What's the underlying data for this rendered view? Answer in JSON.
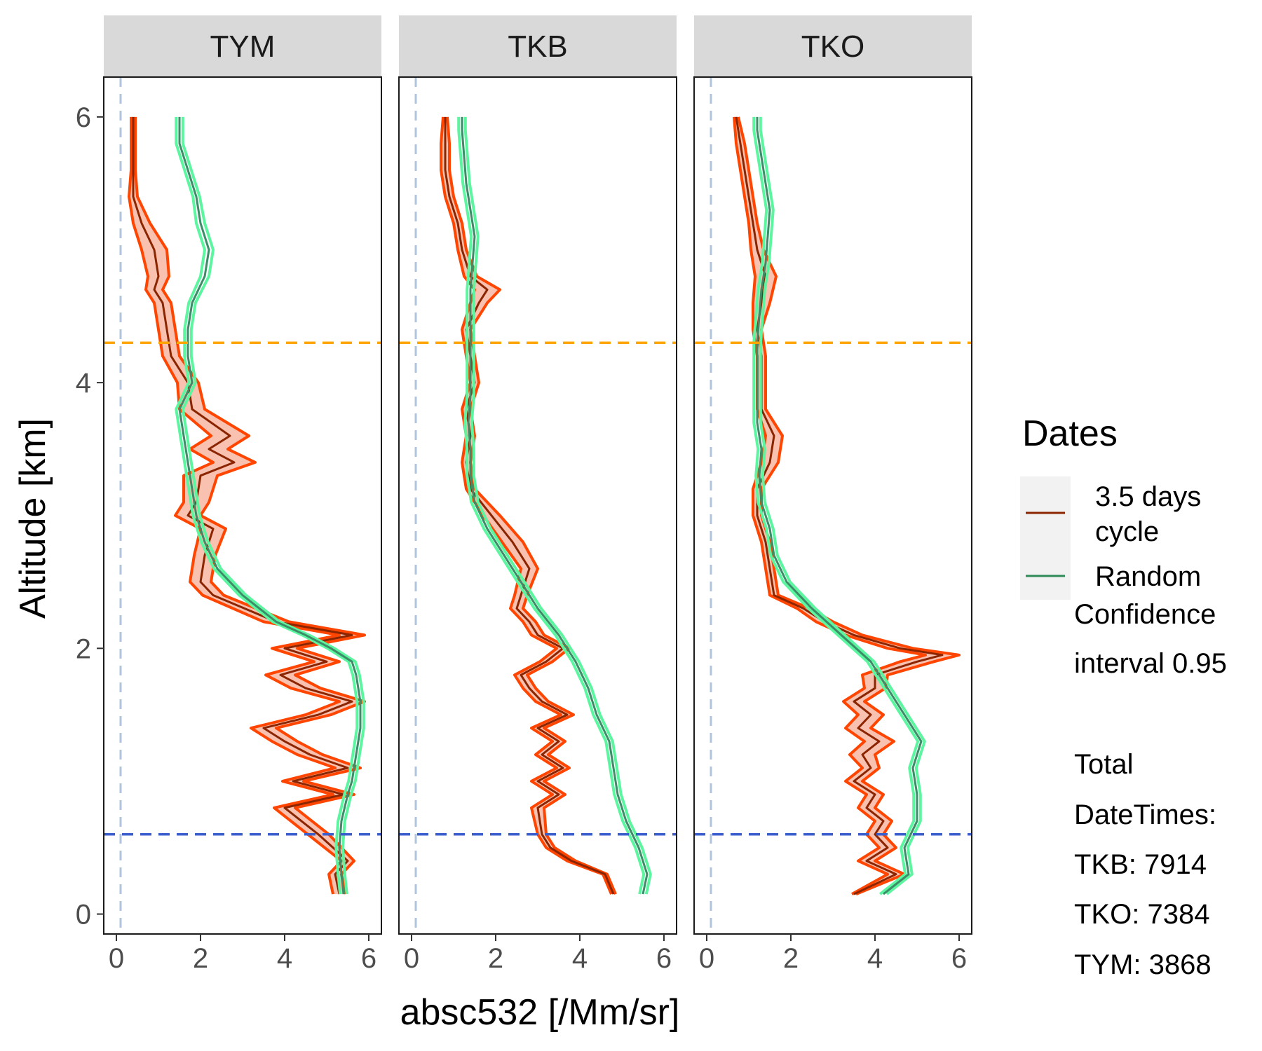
{
  "chart_data": {
    "type": "line",
    "xlabel": "absc532 [/Mm/sr]",
    "ylabel": "Altitude [km]",
    "xlim": [
      -0.3,
      6.3
    ],
    "ylim": [
      -0.15,
      6.3
    ],
    "x_ticks": [
      0,
      2,
      4,
      6
    ],
    "y_ticks": [
      0,
      2,
      4,
      6
    ],
    "grid": false,
    "legend_position": "right",
    "legend": {
      "title": "Dates",
      "items": [
        {
          "label_lines": [
            "3.5 days",
            "cycle"
          ],
          "color": "#8B2500"
        },
        {
          "label_lines": [
            "Random"
          ],
          "color": "#2E8B57"
        }
      ]
    },
    "caption_lines": [
      "Confidence",
      "interval 0.95",
      "",
      "Total",
      "DateTimes:",
      "TKB: 7914",
      "TKO: 7384",
      "TYM: 3868"
    ],
    "colors": {
      "cycle_line": "#8B2500",
      "cycle_band_edge": "#FF4500",
      "cycle_band_fill": "#F8B6A2",
      "random_line": "#3C8C68",
      "random_band_edge": "#5CF5A0",
      "hline_upper": "#FFA500",
      "hline_lower": "#3A5FCD",
      "vline": "#B0C4DE",
      "strip_bg": "#D9D9D9"
    },
    "reference_lines": {
      "horizontal_upper": 4.3,
      "horizontal_lower": 0.6,
      "vertical": 0.1
    },
    "panels": [
      {
        "name": "TYM",
        "series": [
          {
            "name": "3.5 days cycle",
            "altitude": [
              0.15,
              0.3,
              0.4,
              0.6,
              0.8,
              0.9,
              1.0,
              1.1,
              1.2,
              1.3,
              1.4,
              1.5,
              1.6,
              1.7,
              1.8,
              1.9,
              2.0,
              2.1,
              2.2,
              2.4,
              2.5,
              2.7,
              2.9,
              3.0,
              3.1,
              3.3,
              3.4,
              3.5,
              3.6,
              3.8,
              4.0,
              4.2,
              4.4,
              4.6,
              4.7,
              4.8,
              5.0,
              5.2,
              5.4,
              5.6,
              5.8,
              6.0
            ],
            "value": [
              5.3,
              5.2,
              5.5,
              4.8,
              4.0,
              5.4,
              4.2,
              5.5,
              4.6,
              4.0,
              3.5,
              4.8,
              5.6,
              4.5,
              3.9,
              5.0,
              4.0,
              5.6,
              3.8,
              2.3,
              2.0,
              2.1,
              2.3,
              1.7,
              1.9,
              2.0,
              2.8,
              2.2,
              2.7,
              1.8,
              1.7,
              1.3,
              1.2,
              1.1,
              0.9,
              1.0,
              0.9,
              0.6,
              0.4,
              0.4,
              0.4,
              0.4
            ],
            "half_width": [
              0.15,
              0.15,
              0.15,
              0.25,
              0.25,
              0.25,
              0.25,
              0.3,
              0.3,
              0.3,
              0.3,
              0.3,
              0.3,
              0.35,
              0.35,
              0.3,
              0.3,
              0.3,
              0.3,
              0.25,
              0.25,
              0.25,
              0.3,
              0.3,
              0.3,
              0.4,
              0.5,
              0.45,
              0.45,
              0.3,
              0.25,
              0.2,
              0.2,
              0.2,
              0.2,
              0.25,
              0.3,
              0.2,
              0.1,
              0.05,
              0.05,
              0.05
            ]
          },
          {
            "name": "Random",
            "altitude": [
              0.15,
              0.3,
              0.5,
              0.7,
              0.9,
              1.0,
              1.2,
              1.4,
              1.6,
              1.8,
              1.9,
              2.0,
              2.1,
              2.2,
              2.4,
              2.6,
              2.8,
              3.0,
              3.2,
              3.4,
              3.6,
              3.8,
              4.0,
              4.2,
              4.4,
              4.6,
              4.8,
              5.0,
              5.2,
              5.4,
              5.6,
              5.8,
              6.0
            ],
            "value": [
              5.4,
              5.35,
              5.3,
              5.35,
              5.5,
              5.6,
              5.7,
              5.8,
              5.8,
              5.7,
              5.6,
              5.1,
              4.5,
              3.8,
              3.0,
              2.4,
              2.1,
              1.9,
              1.8,
              1.7,
              1.6,
              1.5,
              1.8,
              1.7,
              1.7,
              1.8,
              2.1,
              2.2,
              2.0,
              1.9,
              1.7,
              1.5,
              1.5
            ],
            "half_width": [
              0.08,
              0.08,
              0.08,
              0.08,
              0.08,
              0.08,
              0.08,
              0.08,
              0.08,
              0.08,
              0.08,
              0.08,
              0.08,
              0.08,
              0.08,
              0.08,
              0.08,
              0.08,
              0.08,
              0.08,
              0.08,
              0.08,
              0.08,
              0.08,
              0.08,
              0.08,
              0.1,
              0.1,
              0.1,
              0.08,
              0.08,
              0.08,
              0.08
            ]
          }
        ]
      },
      {
        "name": "TKB",
        "series": [
          {
            "name": "3.5 days cycle",
            "altitude": [
              0.15,
              0.3,
              0.4,
              0.5,
              0.6,
              0.8,
              0.9,
              1.0,
              1.1,
              1.2,
              1.3,
              1.4,
              1.5,
              1.6,
              1.7,
              1.8,
              1.9,
              2.0,
              2.1,
              2.2,
              2.3,
              2.4,
              2.6,
              2.8,
              3.0,
              3.2,
              3.4,
              3.6,
              3.8,
              4.0,
              4.2,
              4.4,
              4.6,
              4.7,
              4.8,
              5.0,
              5.2,
              5.4,
              5.6,
              5.8,
              6.0
            ],
            "value": [
              4.8,
              4.6,
              3.8,
              3.3,
              3.1,
              3.0,
              3.5,
              3.0,
              3.6,
              3.1,
              3.5,
              3.0,
              3.7,
              3.1,
              2.8,
              2.6,
              3.2,
              3.6,
              3.0,
              2.8,
              2.5,
              2.6,
              2.8,
              2.4,
              1.9,
              1.4,
              1.3,
              1.4,
              1.3,
              1.5,
              1.4,
              1.3,
              1.6,
              1.8,
              1.4,
              1.2,
              1.1,
              0.9,
              0.8,
              0.8,
              0.8
            ],
            "half_width": [
              0.05,
              0.05,
              0.1,
              0.1,
              0.1,
              0.15,
              0.15,
              0.15,
              0.15,
              0.15,
              0.15,
              0.15,
              0.15,
              0.15,
              0.15,
              0.15,
              0.15,
              0.15,
              0.15,
              0.15,
              0.15,
              0.15,
              0.2,
              0.25,
              0.2,
              0.1,
              0.1,
              0.1,
              0.1,
              0.1,
              0.1,
              0.1,
              0.2,
              0.3,
              0.15,
              0.1,
              0.1,
              0.1,
              0.1,
              0.1,
              0.05
            ]
          },
          {
            "name": "Random",
            "altitude": [
              0.15,
              0.3,
              0.5,
              0.7,
              0.9,
              1.1,
              1.3,
              1.5,
              1.7,
              1.9,
              2.1,
              2.3,
              2.5,
              2.7,
              2.9,
              3.1,
              3.3,
              3.5,
              3.7,
              3.9,
              4.1,
              4.3,
              4.5,
              4.7,
              4.9,
              5.1,
              5.3,
              5.5,
              5.7,
              5.9,
              6.0
            ],
            "value": [
              5.5,
              5.6,
              5.4,
              5.1,
              4.9,
              4.8,
              4.7,
              4.4,
              4.2,
              3.9,
              3.5,
              3.0,
              2.6,
              2.2,
              1.8,
              1.5,
              1.4,
              1.4,
              1.35,
              1.4,
              1.4,
              1.4,
              1.4,
              1.4,
              1.45,
              1.5,
              1.4,
              1.3,
              1.25,
              1.2,
              1.2
            ],
            "half_width": [
              0.08,
              0.08,
              0.08,
              0.08,
              0.08,
              0.08,
              0.08,
              0.08,
              0.08,
              0.08,
              0.08,
              0.08,
              0.08,
              0.08,
              0.08,
              0.08,
              0.08,
              0.08,
              0.08,
              0.08,
              0.08,
              0.08,
              0.08,
              0.08,
              0.08,
              0.08,
              0.08,
              0.08,
              0.08,
              0.08,
              0.08
            ]
          }
        ]
      },
      {
        "name": "TKO",
        "series": [
          {
            "name": "3.5 days cycle",
            "altitude": [
              0.15,
              0.3,
              0.4,
              0.5,
              0.6,
              0.7,
              0.8,
              0.9,
              1.0,
              1.1,
              1.2,
              1.3,
              1.4,
              1.5,
              1.6,
              1.7,
              1.8,
              1.9,
              1.95,
              2.0,
              2.1,
              2.2,
              2.3,
              2.4,
              2.6,
              2.8,
              3.0,
              3.2,
              3.4,
              3.6,
              3.8,
              4.0,
              4.2,
              4.4,
              4.6,
              4.8,
              5.0,
              5.2,
              5.4,
              5.6,
              5.8,
              6.0
            ],
            "value": [
              3.5,
              4.5,
              3.8,
              4.3,
              4.0,
              4.2,
              3.8,
              4.0,
              3.5,
              3.9,
              3.7,
              4.1,
              3.6,
              3.9,
              3.5,
              4.0,
              4.0,
              5.0,
              5.6,
              4.6,
              3.5,
              2.8,
              2.3,
              1.6,
              1.5,
              1.4,
              1.2,
              1.2,
              1.5,
              1.6,
              1.3,
              1.3,
              1.3,
              1.2,
              1.3,
              1.4,
              1.2,
              1.1,
              1.0,
              0.9,
              0.8,
              0.7
            ],
            "half_width": [
              0.05,
              0.2,
              0.2,
              0.2,
              0.2,
              0.2,
              0.2,
              0.2,
              0.2,
              0.2,
              0.3,
              0.35,
              0.3,
              0.3,
              0.25,
              0.25,
              0.3,
              0.4,
              0.4,
              0.3,
              0.2,
              0.2,
              0.15,
              0.1,
              0.1,
              0.1,
              0.1,
              0.1,
              0.2,
              0.2,
              0.1,
              0.1,
              0.1,
              0.1,
              0.2,
              0.25,
              0.15,
              0.1,
              0.1,
              0.1,
              0.1,
              0.05
            ]
          },
          {
            "name": "Random",
            "altitude": [
              0.15,
              0.3,
              0.5,
              0.7,
              0.9,
              1.1,
              1.3,
              1.5,
              1.7,
              1.9,
              2.1,
              2.3,
              2.5,
              2.7,
              2.9,
              3.1,
              3.3,
              3.5,
              3.7,
              3.9,
              4.1,
              4.3,
              4.5,
              4.7,
              4.9,
              5.1,
              5.3,
              5.5,
              5.7,
              5.9,
              6.0
            ],
            "value": [
              4.2,
              4.8,
              4.7,
              5.0,
              5.0,
              4.9,
              5.1,
              4.7,
              4.3,
              3.9,
              3.2,
              2.5,
              1.9,
              1.6,
              1.5,
              1.3,
              1.25,
              1.3,
              1.2,
              1.2,
              1.2,
              1.2,
              1.25,
              1.3,
              1.4,
              1.45,
              1.5,
              1.4,
              1.3,
              1.2,
              1.2
            ],
            "half_width": [
              0.08,
              0.08,
              0.08,
              0.08,
              0.08,
              0.08,
              0.08,
              0.08,
              0.08,
              0.08,
              0.08,
              0.08,
              0.08,
              0.08,
              0.08,
              0.08,
              0.08,
              0.08,
              0.08,
              0.08,
              0.08,
              0.08,
              0.08,
              0.08,
              0.08,
              0.08,
              0.08,
              0.08,
              0.08,
              0.08,
              0.08
            ]
          }
        ]
      }
    ]
  }
}
